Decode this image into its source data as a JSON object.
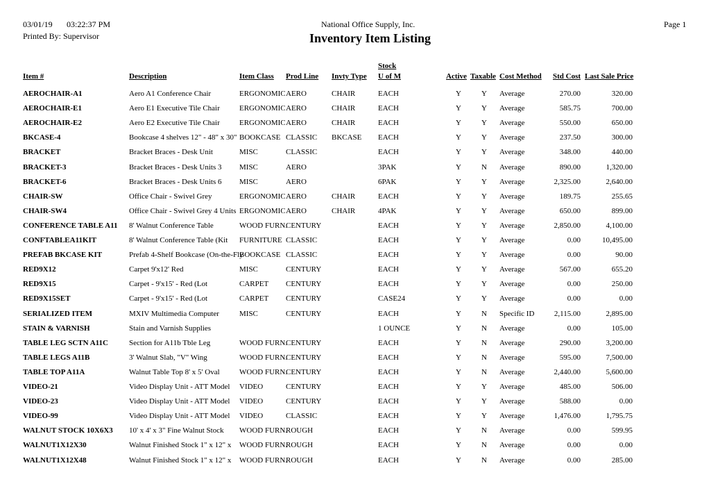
{
  "header": {
    "date": "03/01/19",
    "time": "03:22:37 PM",
    "printed_by": "Printed By:  Supervisor",
    "company": "National Office Supply, Inc.",
    "title": "Inventory Item Listing",
    "page": "Page 1"
  },
  "columns": {
    "item": "Item #",
    "description": "Description",
    "item_class": "Item Class",
    "prod_line": "Prod Line",
    "invty_type": "Invty Type",
    "uom_top": "Stock",
    "uom": "U of M",
    "active": "Active",
    "taxable": "Taxable",
    "cost_method": "Cost Method",
    "std_cost": "Std Cost",
    "last_sale_price": "Last Sale Price"
  },
  "rows": [
    [
      "AEROCHAIR-A1",
      "Aero A1 Conference Chair",
      "ERGONOMIC",
      "AERO",
      "CHAIR",
      "EACH",
      "Y",
      "Y",
      "Average",
      "270.00",
      "320.00"
    ],
    [
      "AEROCHAIR-E1",
      "Aero E1 Executive Tile Chair",
      "ERGONOMIC",
      "AERO",
      "CHAIR",
      "EACH",
      "Y",
      "Y",
      "Average",
      "585.75",
      "700.00"
    ],
    [
      "AEROCHAIR-E2",
      "Aero E2 Executive Tile Chair",
      "ERGONOMIC",
      "AERO",
      "CHAIR",
      "EACH",
      "Y",
      "Y",
      "Average",
      "550.00",
      "650.00"
    ],
    [
      "BKCASE-4",
      "Bookcase 4 shelves 12\" - 48\" x 30\"",
      "BOOKCASE",
      "CLASSIC",
      "BKCASE",
      "EACH",
      "Y",
      "Y",
      "Average",
      "237.50",
      "300.00"
    ],
    [
      "BRACKET",
      "Bracket Braces - Desk Unit",
      "MISC",
      "CLASSIC",
      "",
      "EACH",
      "Y",
      "Y",
      "Average",
      "348.00",
      "440.00"
    ],
    [
      "BRACKET-3",
      "Bracket Braces - Desk Units 3",
      "MISC",
      "AERO",
      "",
      "3PAK",
      "Y",
      "N",
      "Average",
      "890.00",
      "1,320.00"
    ],
    [
      "BRACKET-6",
      "Bracket Braces - Desk Units 6",
      "MISC",
      "AERO",
      "",
      "6PAK",
      "Y",
      "Y",
      "Average",
      "2,325.00",
      "2,640.00"
    ],
    [
      "CHAIR-SW",
      "Office Chair - Swivel Grey",
      "ERGONOMIC",
      "AERO",
      "CHAIR",
      "EACH",
      "Y",
      "Y",
      "Average",
      "189.75",
      "255.65"
    ],
    [
      "CHAIR-SW4",
      "Office Chair - Swivel Grey 4 Units",
      "ERGONOMIC",
      "AERO",
      "CHAIR",
      "4PAK",
      "Y",
      "Y",
      "Average",
      "650.00",
      "899.00"
    ],
    [
      "CONFERENCE TABLE A11",
      "8' Walnut Conference Table",
      "WOOD FURN.",
      "CENTURY",
      "",
      "EACH",
      "Y",
      "Y",
      "Average",
      "2,850.00",
      "4,100.00"
    ],
    [
      "CONFTABLEA11KIT",
      "8' Walnut Conference Table (Kit",
      "FURNITURE",
      "CLASSIC",
      "",
      "EACH",
      "Y",
      "Y",
      "Average",
      "0.00",
      "10,495.00"
    ],
    [
      "PREFAB BKCASE KIT",
      "Prefab 4-Shelf Bookcase (On-the-Fly",
      "BOOKCASE",
      "CLASSIC",
      "",
      "EACH",
      "Y",
      "Y",
      "Average",
      "0.00",
      "90.00"
    ],
    [
      "RED9X12",
      "Carpet 9'x12' Red",
      "MISC",
      "CENTURY",
      "",
      "EACH",
      "Y",
      "Y",
      "Average",
      "567.00",
      "655.20"
    ],
    [
      "RED9X15",
      "Carpet - 9'x15' - Red (Lot",
      "CARPET",
      "CENTURY",
      "",
      "EACH",
      "Y",
      "Y",
      "Average",
      "0.00",
      "250.00"
    ],
    [
      "RED9X15SET",
      "Carpet - 9'x15' - Red (Lot",
      "CARPET",
      "CENTURY",
      "",
      "CASE24",
      "Y",
      "Y",
      "Average",
      "0.00",
      "0.00"
    ],
    [
      "SERIALIZED ITEM",
      "MXIV Multimedia Computer",
      "MISC",
      "CENTURY",
      "",
      "EACH",
      "Y",
      "N",
      "Specific ID",
      "2,115.00",
      "2,895.00"
    ],
    [
      "STAIN & VARNISH",
      "Stain and Varnish Supplies",
      "",
      "",
      "",
      "1 OUNCE",
      "Y",
      "N",
      "Average",
      "0.00",
      "105.00"
    ],
    [
      "TABLE LEG SCTN A11C",
      "Section for A11b Tble Leg",
      "WOOD FURN.",
      "CENTURY",
      "",
      "EACH",
      "Y",
      "N",
      "Average",
      "290.00",
      "3,200.00"
    ],
    [
      "TABLE LEGS A11B",
      "3' Walnut Slab, \"V\"  Wing",
      "WOOD FURN.",
      "CENTURY",
      "",
      "EACH",
      "Y",
      "N",
      "Average",
      "595.00",
      "7,500.00"
    ],
    [
      "TABLE TOP A11A",
      "Walnut Table Top 8' x 5' Oval",
      "WOOD FURN.",
      "CENTURY",
      "",
      "EACH",
      "Y",
      "N",
      "Average",
      "2,440.00",
      "5,600.00"
    ],
    [
      "VIDEO-21",
      "Video Display Unit - ATT Model",
      "VIDEO",
      "CENTURY",
      "",
      "EACH",
      "Y",
      "Y",
      "Average",
      "485.00",
      "506.00"
    ],
    [
      "VIDEO-23",
      "Video  Display Unit - ATT Model",
      "VIDEO",
      "CENTURY",
      "",
      "EACH",
      "Y",
      "Y",
      "Average",
      "588.00",
      "0.00"
    ],
    [
      "VIDEO-99",
      "Video Display Unit - ATT Model",
      "VIDEO",
      "CLASSIC",
      "",
      "EACH",
      "Y",
      "Y",
      "Average",
      "1,476.00",
      "1,795.75"
    ],
    [
      "WALNUT STOCK 10X6X3",
      "10' x 4' x 3\" Fine Walnut Stock",
      "WOOD FURN.",
      "ROUGH",
      "",
      "EACH",
      "Y",
      "N",
      "Average",
      "0.00",
      "599.95"
    ],
    [
      "WALNUT1X12X30",
      "Walnut Finished Stock 1\" x 12\" x",
      "WOOD FURN.",
      "ROUGH",
      "",
      "EACH",
      "Y",
      "N",
      "Average",
      "0.00",
      "0.00"
    ],
    [
      "WALNUT1X12X48",
      "Walnut Finished Stock 1\" x 12\" x",
      "WOOD FURN.",
      "ROUGH",
      "",
      "EACH",
      "Y",
      "N",
      "Average",
      "0.00",
      "285.00"
    ]
  ]
}
